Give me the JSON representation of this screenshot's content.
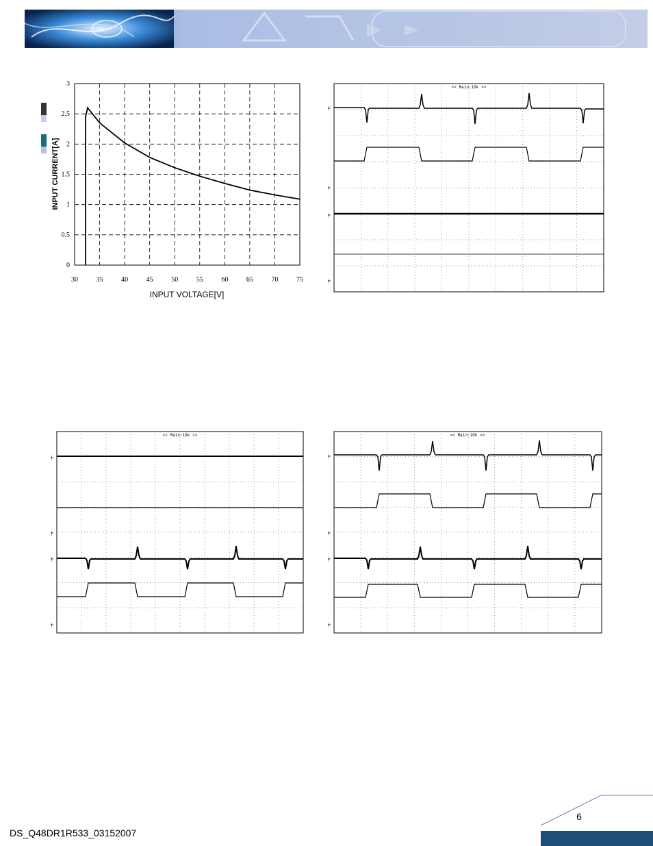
{
  "colors": {
    "banner_base": "#b9c5e3",
    "banner_dark": "#0a2a5e",
    "footer_bar": "#1e4d7a",
    "grid": "#000000"
  },
  "chart_data": {
    "type": "line",
    "xlabel": "INPUT VOLTAGE[V]",
    "ylabel": "INPUT CURRENT[A]",
    "xlim": [
      30,
      75
    ],
    "ylim": [
      0,
      3
    ],
    "x_ticks": [
      "30",
      "35",
      "40",
      "45",
      "50",
      "55",
      "60",
      "65",
      "70",
      "75"
    ],
    "y_ticks": [
      "0",
      "0.5",
      "1",
      "1.5",
      "2",
      "2.5",
      "3"
    ],
    "grid": true,
    "series": [
      {
        "x": [
          32.2,
          32.2,
          32.6,
          35,
          40,
          45,
          50,
          55,
          60,
          65,
          70,
          75
        ],
        "y": [
          0,
          2.45,
          2.6,
          2.35,
          2.02,
          1.78,
          1.61,
          1.47,
          1.35,
          1.24,
          1.16,
          1.09
        ]
      }
    ]
  },
  "scopes": [
    {
      "header": "<< Main:10k >>"
    },
    {
      "header": "<< Main:10k >>"
    },
    {
      "header": "<< Main:10k >>"
    }
  ],
  "footer": {
    "doc_id": "DS_Q48DR1R533_03152007",
    "page_number": "6"
  }
}
